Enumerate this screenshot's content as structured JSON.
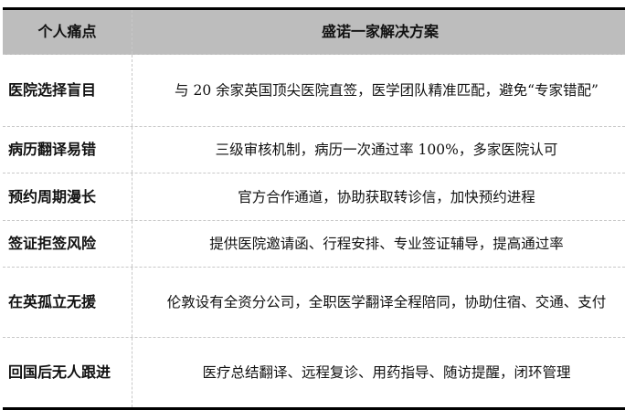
{
  "header": {
    "col1": "个人痛点",
    "col2": "盛诺一家解决方案"
  },
  "rows": [
    {
      "pain": "医院选择盲目",
      "solution": "与 20 余家英国顶尖医院直签，医学团队精准匹配，避免“专家错配”"
    },
    {
      "pain": "病历翻译易错",
      "solution": "三级审核机制，病历一次通过率 100%，多家医院认可"
    },
    {
      "pain": "预约周期漫长",
      "solution": "官方合作通道，协助获取转诊信，加快预约进程"
    },
    {
      "pain": "签证拒签风险",
      "solution": "提供医院邀请函、行程安排、专业签证辅导，提高通过率"
    },
    {
      "pain": "在英孤立无援",
      "solution": "伦敦设有全资分公司，全职医学翻译全程陪同，协助住宿、交通、支付"
    },
    {
      "pain": "回国后无人跟进",
      "solution": "医疗总结翻译、远程复诊、用药指导、随访提醒，闭环管理"
    }
  ]
}
